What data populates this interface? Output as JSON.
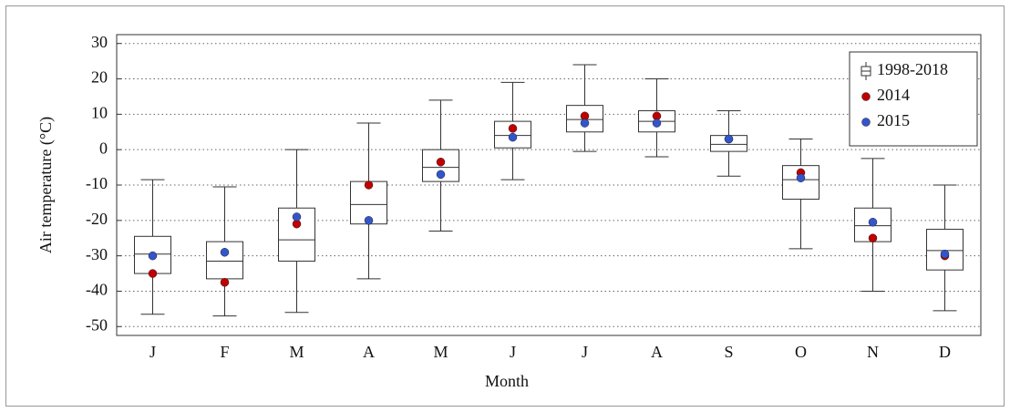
{
  "chart_data": {
    "type": "box",
    "x_label": "Month",
    "y_label": "Air temperature (°C)",
    "categories": [
      "J",
      "F",
      "M",
      "A",
      "M",
      "J",
      "J",
      "A",
      "S",
      "O",
      "N",
      "D"
    ],
    "boxes": {
      "name": "1998-2018",
      "color": "#333333",
      "low": [
        -46.5,
        -47,
        -46,
        -36.5,
        -23,
        -8.5,
        -0.5,
        -2,
        -7.5,
        -28,
        -40,
        -45.5
      ],
      "q1": [
        -35,
        -36.5,
        -31.5,
        -21,
        -9,
        0.5,
        5,
        5,
        -0.5,
        -14,
        -26,
        -34
      ],
      "median": [
        -29.5,
        -31.5,
        -25.5,
        -15.5,
        -5,
        4,
        8.5,
        8,
        1.5,
        -8.5,
        -21.5,
        -28.5
      ],
      "q3": [
        -24.5,
        -26,
        -16.5,
        -9,
        0,
        8,
        12.5,
        11,
        4,
        -4.5,
        -16.5,
        -22.5
      ],
      "high": [
        -8.5,
        -10.5,
        0,
        7.5,
        14,
        19,
        24,
        20,
        11,
        3,
        -2.5,
        -10
      ]
    },
    "series": [
      {
        "name": "2014",
        "color": "#c00000",
        "values": [
          -35,
          -37.5,
          -21,
          -10,
          -3.5,
          6,
          9.5,
          9.5,
          3,
          -6.5,
          -25,
          -30
        ]
      },
      {
        "name": "2015",
        "color": "#3355cc",
        "values": [
          -30,
          -29,
          -19,
          -20,
          -7,
          3.5,
          7.5,
          7.5,
          3,
          -8,
          -20.5,
          -29.5
        ]
      }
    ],
    "ylim": [
      -52.5,
      32.5
    ],
    "yticks": [
      30,
      20,
      10,
      0,
      -10,
      -20,
      -30,
      -40,
      -50
    ],
    "grid": true,
    "legend": "upper right"
  }
}
